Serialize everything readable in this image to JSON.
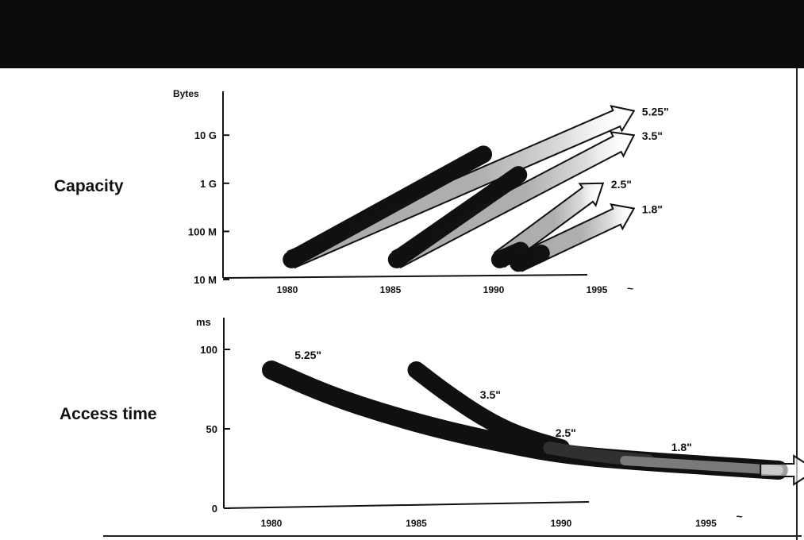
{
  "slide": {
    "title": "",
    "capacity_label": "Capacity",
    "access_label": "Access time"
  },
  "chart_data": [
    {
      "type": "line",
      "title": "",
      "ylabel": "Bytes",
      "xlabel": "",
      "y_scale": "log",
      "y_ticks": [
        "10 M",
        "100 M",
        "1 G",
        "10 G"
      ],
      "y_tick_values": [
        10000000,
        100000000,
        1000000000,
        10000000000
      ],
      "x_ticks": [
        "1980",
        "1985",
        "1990",
        "1995"
      ],
      "x_tick_values": [
        1980,
        1985,
        1990,
        1995
      ],
      "x_arrow_label": "~",
      "xlim": [
        1979,
        2001
      ],
      "ylim": [
        10000000,
        60000000000
      ],
      "series": [
        {
          "name": "5.25\"",
          "points": [
            [
              1980.2,
              26000000
            ],
            [
              1989.5,
              4000000000
            ]
          ],
          "arrow_end": [
            1996.8,
            32000000000
          ]
        },
        {
          "name": "3.5\"",
          "points": [
            [
              1985.3,
              26000000
            ],
            [
              1991.2,
              1500000000
            ]
          ],
          "arrow_end": [
            1996.8,
            10000000000
          ]
        },
        {
          "name": "2.5\"",
          "points": [
            [
              1990.3,
              26000000
            ],
            [
              1991.3,
              40000000
            ]
          ],
          "arrow_end": [
            1995.3,
            1000000000
          ]
        },
        {
          "name": "1.8\"",
          "points": [
            [
              1991.2,
              22000000
            ],
            [
              1992.3,
              35000000
            ]
          ],
          "arrow_end": [
            1996.8,
            300000000
          ]
        }
      ]
    },
    {
      "type": "line",
      "title": "",
      "ylabel": "ms",
      "xlabel": "",
      "y_ticks": [
        "0",
        "50",
        "100"
      ],
      "y_tick_values": [
        0,
        50,
        100
      ],
      "x_ticks": [
        "1980",
        "1985",
        "1990",
        "1995"
      ],
      "x_tick_values": [
        1980,
        1985,
        1990,
        1995
      ],
      "x_arrow_label": "~",
      "xlim": [
        1978,
        2000
      ],
      "ylim": [
        0,
        110
      ],
      "series": [
        {
          "name": "5.25\"",
          "points": [
            [
              1980,
              87
            ],
            [
              1982,
              71
            ],
            [
              1984,
              59
            ],
            [
              1986,
              49
            ],
            [
              1988,
              41
            ],
            [
              1990,
              34
            ],
            [
              1992.5,
              30
            ],
            [
              1995,
              27
            ],
            [
              1997.5,
              24
            ]
          ]
        },
        {
          "name": "3.5\"",
          "points": [
            [
              1985,
              87
            ],
            [
              1986,
              73
            ],
            [
              1987.3,
              57
            ],
            [
              1988.5,
              46
            ],
            [
              1990,
              38
            ]
          ]
        },
        {
          "name": "2.5\"",
          "points": [
            [
              1989.6,
              38
            ],
            [
              1991.2,
              33
            ],
            [
              1993,
              30
            ]
          ]
        },
        {
          "name": "1.8\"",
          "points": [
            [
              1992.2,
              30
            ],
            [
              1997.5,
              24
            ]
          ]
        }
      ],
      "arrow_end": [
        1998.8,
        24
      ]
    }
  ]
}
